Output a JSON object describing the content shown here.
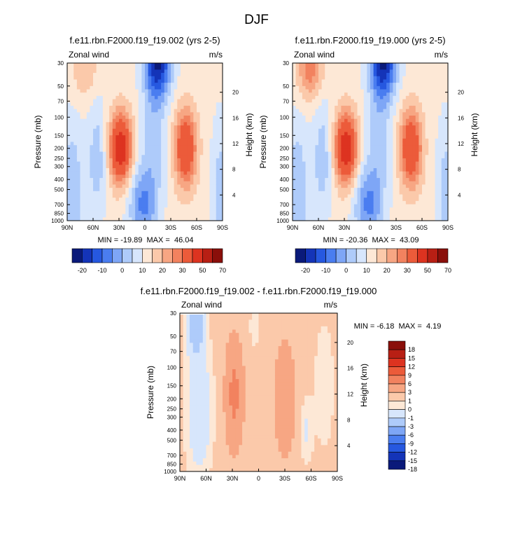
{
  "page_title": "DJF",
  "chart_data": [
    {
      "type": "heatmap",
      "title": "f.e11.rbn.F2000.f19_f19.002 (yrs 2-5)",
      "left_label": "Zonal wind",
      "right_label": "m/s",
      "ylabel": "Pressure (mb)",
      "ylabel_right": "Height (km)",
      "x_ticks": [
        "90N",
        "60N",
        "30N",
        "0",
        "30S",
        "60S",
        "90S"
      ],
      "y_ticks": [
        30,
        50,
        70,
        100,
        150,
        200,
        250,
        300,
        400,
        500,
        700,
        850,
        1000
      ],
      "y_right_ticks": [
        20,
        16,
        12,
        8,
        4
      ],
      "x_range": [
        90,
        -90
      ],
      "y_range": [
        30,
        1000
      ],
      "log_scale_y": true,
      "min_max": "MIN = -19.89  MAX =  46.04",
      "colorbar_labels": [
        "-20",
        "-10",
        "0",
        "10",
        "20",
        "30",
        "50",
        "70"
      ],
      "levels": [
        -20,
        -15,
        -10,
        -5,
        0,
        5,
        10,
        15,
        20,
        25,
        30,
        40,
        50,
        60,
        70
      ],
      "features": [
        {
          "lat": 28,
          "p": 190,
          "value": 46,
          "kind": "max"
        },
        {
          "lat": -47,
          "p": 200,
          "value": 37,
          "kind": "max"
        },
        {
          "lat": 70,
          "p": 40,
          "value": 15,
          "kind": "max"
        },
        {
          "lat": -17,
          "p": 30,
          "value": -20,
          "kind": "min"
        },
        {
          "lat": 2,
          "p": 700,
          "value": -12,
          "kind": "min"
        }
      ]
    },
    {
      "type": "heatmap",
      "title": "f.e11.rbn.F2000.f19_f19.000 (yrs 2-5)",
      "left_label": "Zonal wind",
      "right_label": "m/s",
      "ylabel": "Pressure (mb)",
      "ylabel_right": "Height (km)",
      "x_ticks": [
        "90N",
        "60N",
        "30N",
        "0",
        "30S",
        "60S",
        "90S"
      ],
      "y_ticks": [
        30,
        50,
        70,
        100,
        150,
        200,
        250,
        300,
        400,
        500,
        700,
        850,
        1000
      ],
      "y_right_ticks": [
        20,
        16,
        12,
        8,
        4
      ],
      "x_range": [
        90,
        -90
      ],
      "y_range": [
        30,
        1000
      ],
      "log_scale_y": true,
      "min_max": "MIN = -20.36  MAX =  43.09",
      "colorbar_labels": [
        "-20",
        "-10",
        "0",
        "10",
        "20",
        "30",
        "50",
        "70"
      ],
      "levels": [
        -20,
        -15,
        -10,
        -5,
        0,
        5,
        10,
        15,
        20,
        25,
        30,
        40,
        50,
        60,
        70
      ],
      "features": [
        {
          "lat": 28,
          "p": 200,
          "value": 43,
          "kind": "max"
        },
        {
          "lat": -47,
          "p": 200,
          "value": 36,
          "kind": "max"
        },
        {
          "lat": 68,
          "p": 35,
          "value": 25,
          "kind": "max"
        },
        {
          "lat": -17,
          "p": 30,
          "value": -20,
          "kind": "min"
        },
        {
          "lat": 2,
          "p": 700,
          "value": -12,
          "kind": "min"
        }
      ]
    },
    {
      "type": "heatmap",
      "title": "f.e11.rbn.F2000.f19_f19.002 - f.e11.rbn.F2000.f19_f19.000",
      "left_label": "Zonal wind",
      "right_label": "m/s",
      "ylabel": "Pressure (mb)",
      "ylabel_right": "Height (km)",
      "x_ticks": [
        "90N",
        "60N",
        "30N",
        "0",
        "30S",
        "60S",
        "90S"
      ],
      "y_ticks": [
        30,
        50,
        70,
        100,
        150,
        200,
        250,
        300,
        400,
        500,
        700,
        850,
        1000
      ],
      "y_right_ticks": [
        20,
        16,
        12,
        8,
        4
      ],
      "x_range": [
        90,
        -90
      ],
      "y_range": [
        30,
        1000
      ],
      "log_scale_y": true,
      "min_max": "MIN = -6.18  MAX =  4.19",
      "colorbar_labels": [
        "18",
        "15",
        "12",
        "9",
        "6",
        "3",
        "1",
        "0",
        "-1",
        "-3",
        "-6",
        "-9",
        "-12",
        "-15",
        "-18"
      ],
      "levels": [
        -18,
        -15,
        -12,
        -9,
        -6,
        -3,
        -1,
        0,
        1,
        3,
        6,
        9,
        12,
        15,
        18
      ],
      "features": [
        {
          "lat": 72,
          "p": 35,
          "value": -6.18,
          "kind": "min"
        },
        {
          "lat": 68,
          "p": 250,
          "value": -4,
          "kind": "min"
        },
        {
          "lat": 28,
          "p": 180,
          "value": 4.19,
          "kind": "max"
        },
        {
          "lat": -30,
          "p": 200,
          "value": 2,
          "kind": "max"
        },
        {
          "lat": -55,
          "p": 400,
          "value": -2,
          "kind": "min"
        }
      ]
    }
  ]
}
